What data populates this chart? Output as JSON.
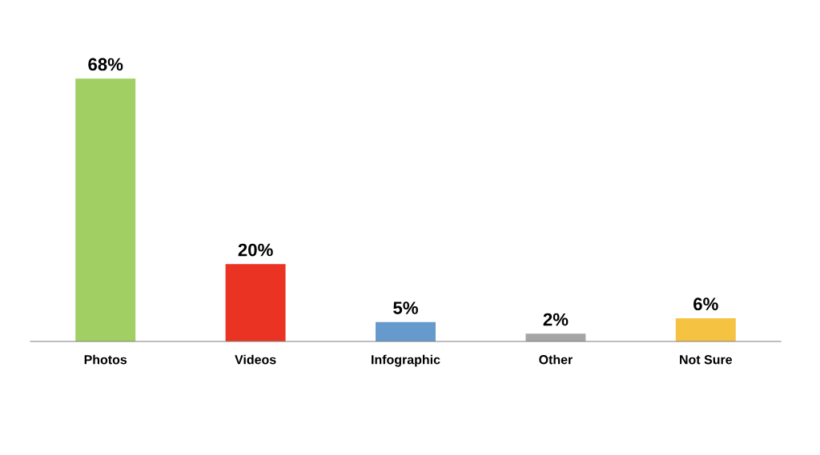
{
  "chart_data": {
    "type": "bar",
    "categories": [
      "Photos",
      "Videos",
      "Infographic",
      "Other",
      "Not Sure"
    ],
    "values": [
      68,
      20,
      5,
      2,
      6
    ],
    "colors": [
      "#a1cf63",
      "#ea3323",
      "#6699cc",
      "#a5a5a5",
      "#f5c242"
    ],
    "value_labels": [
      "68%",
      "20%",
      "5%",
      "2%",
      "6%"
    ],
    "grid": false,
    "legend": false
  }
}
